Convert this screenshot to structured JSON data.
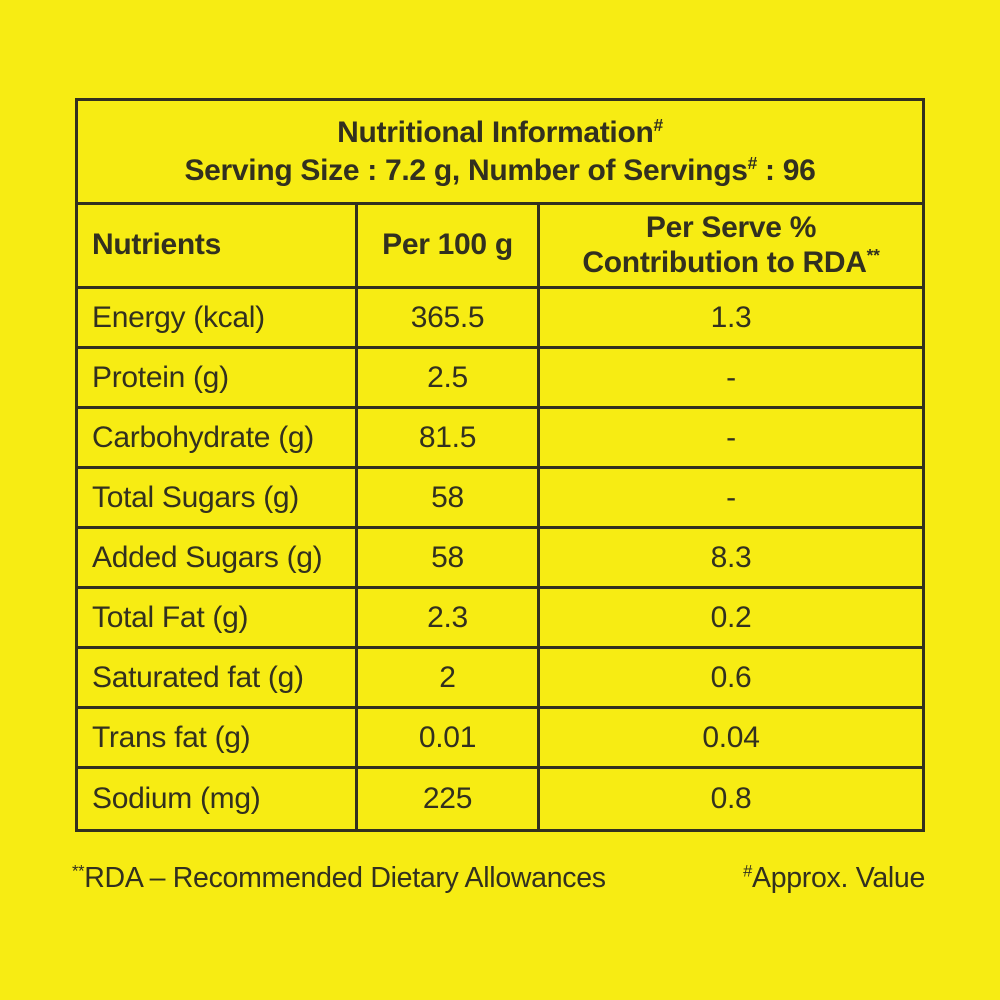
{
  "page": {
    "background_color": "#f7ec13",
    "ink_color": "#32301f"
  },
  "header": {
    "title": "Nutritional Information",
    "title_sup": "#",
    "serving_pre": "Serving Size : 7.2 g, Number of Servings",
    "serving_sup": "#",
    "serving_post": " : 96"
  },
  "columns": {
    "nutrients": "Nutrients",
    "per_100_g": "Per 100 g",
    "rda_line1": "Per Serve %",
    "rda_line2": "Contribution to RDA",
    "rda_sup": "**"
  },
  "rows": [
    {
      "nutrient": "Energy (kcal)",
      "per_100_g": "365.5",
      "per_serve_rda_pct": "1.3"
    },
    {
      "nutrient": "Protein (g)",
      "per_100_g": "2.5",
      "per_serve_rda_pct": "-"
    },
    {
      "nutrient": "Carbohydrate (g)",
      "per_100_g": "81.5",
      "per_serve_rda_pct": "-"
    },
    {
      "nutrient": "Total Sugars (g)",
      "per_100_g": "58",
      "per_serve_rda_pct": "-"
    },
    {
      "nutrient": "Added Sugars (g)",
      "per_100_g": "58",
      "per_serve_rda_pct": "8.3"
    },
    {
      "nutrient": "Total Fat (g)",
      "per_100_g": "2.3",
      "per_serve_rda_pct": "0.2"
    },
    {
      "nutrient": "Saturated fat (g)",
      "per_100_g": "2",
      "per_serve_rda_pct": "0.6"
    },
    {
      "nutrient": "Trans fat (g)",
      "per_100_g": "0.01",
      "per_serve_rda_pct": "0.04"
    },
    {
      "nutrient": "Sodium (mg)",
      "per_100_g": "225",
      "per_serve_rda_pct": "0.8"
    }
  ],
  "footnotes": {
    "rda_sup": "**",
    "rda_text": "RDA – Recommended Dietary Allowances",
    "approx_sup": "#",
    "approx_text": "Approx. Value"
  }
}
